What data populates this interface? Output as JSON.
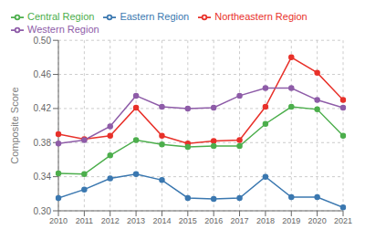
{
  "chart_data": {
    "type": "line",
    "x": [
      2010,
      2011,
      2012,
      2013,
      2014,
      2015,
      2016,
      2017,
      2018,
      2019,
      2020,
      2021
    ],
    "series": [
      {
        "name": "Northeastern Region",
        "color": "#e8312a",
        "marker": "circle",
        "values": [
          0.39,
          0.384,
          0.388,
          0.421,
          0.388,
          0.379,
          0.382,
          0.383,
          0.422,
          0.48,
          0.462,
          0.43
        ]
      },
      {
        "name": "Eastern Region",
        "color": "#3b78b0",
        "marker": "circle",
        "values": [
          0.315,
          0.325,
          0.338,
          0.343,
          0.336,
          0.315,
          0.314,
          0.315,
          0.34,
          0.316,
          0.316,
          0.304
        ]
      },
      {
        "name": "Central Region",
        "color": "#4cae4c",
        "marker": "circle",
        "values": [
          0.344,
          0.343,
          0.365,
          0.383,
          0.378,
          0.375,
          0.376,
          0.376,
          0.402,
          0.422,
          0.419,
          0.388
        ]
      },
      {
        "name": "Western Region",
        "color": "#8e5ca8",
        "marker": "circle",
        "values": [
          0.379,
          0.383,
          0.399,
          0.435,
          0.422,
          0.42,
          0.421,
          0.435,
          0.444,
          0.444,
          0.43,
          0.421
        ]
      }
    ],
    "ylabel": "Composite Score",
    "xlim": [
      2010,
      2021
    ],
    "xticks": [
      2010,
      2011,
      2012,
      2013,
      2014,
      2015,
      2016,
      2017,
      2018,
      2019,
      2020,
      2021
    ],
    "ylim": [
      0.3,
      0.5
    ],
    "yticks": [
      {
        "value": 0.3,
        "label": "0.30"
      },
      0.34,
      0.38,
      0.42,
      0.46,
      {
        "value": 0.5,
        "label": "0.50"
      }
    ],
    "grid": true,
    "legend": "upper left"
  }
}
